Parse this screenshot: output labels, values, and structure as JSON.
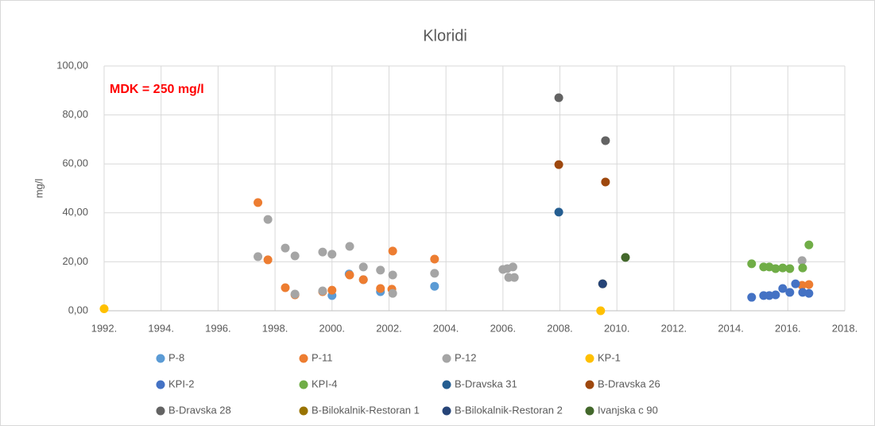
{
  "chart_data": {
    "type": "scatter",
    "title": "Kloridi",
    "y_label": "mg/l",
    "annotation": "MDK = 250 mg/l",
    "xlim": [
      1992,
      2018
    ],
    "xticks": [
      {
        "value": 1992,
        "label": "1992."
      },
      {
        "value": 1994,
        "label": "1994."
      },
      {
        "value": 1996,
        "label": "1996."
      },
      {
        "value": 1998,
        "label": "1998."
      },
      {
        "value": 2000,
        "label": "2000."
      },
      {
        "value": 2002,
        "label": "2002."
      },
      {
        "value": 2004,
        "label": "2004."
      },
      {
        "value": 2006,
        "label": "2006."
      },
      {
        "value": 2008,
        "label": "2008."
      },
      {
        "value": 2010,
        "label": "2010."
      },
      {
        "value": 2012,
        "label": "2012."
      },
      {
        "value": 2014,
        "label": "2014."
      },
      {
        "value": 2016,
        "label": "2016."
      },
      {
        "value": 2018,
        "label": "2018."
      }
    ],
    "ylim": [
      0,
      100
    ],
    "yticks": [
      {
        "value": 0,
        "label": "0,00"
      },
      {
        "value": 20,
        "label": "20,00"
      },
      {
        "value": 40,
        "label": "40,00"
      },
      {
        "value": 60,
        "label": "60,00"
      },
      {
        "value": 80,
        "label": "80,00"
      },
      {
        "value": 100,
        "label": "100,00"
      }
    ],
    "grid": true,
    "series": [
      {
        "name": "P-8",
        "color": "#5b9bd5",
        "x": [
          2000.0,
          2000.6,
          2001.1,
          2001.7,
          2003.6
        ],
        "values": [
          6.2,
          15,
          12.7,
          7.8,
          10
        ]
      },
      {
        "name": "P-11",
        "color": "#ed7d31",
        "x": [
          1997.4,
          1997.75,
          1998.36,
          1998.7,
          1999.67,
          2000.0,
          2000.62,
          2001.1,
          2001.7,
          2002.1,
          2002.13,
          2003.6,
          2016.5,
          2016.74
        ],
        "values": [
          44.2,
          20.8,
          9.4,
          6.5,
          7.8,
          8.4,
          14.6,
          12.7,
          9.1,
          8.8,
          24.4,
          21.1,
          10.4,
          10.7
        ]
      },
      {
        "name": "P-12",
        "color": "#a5a5a5",
        "x": [
          1997.4,
          1997.75,
          1998.36,
          1998.7,
          1999.67,
          2000.0,
          2000.62,
          2001.1,
          2001.7,
          2002.13,
          2002.13,
          2003.6,
          1998.7,
          1999.67,
          2006.0,
          2006.15,
          2006.35,
          2006.2,
          2006.4,
          2016.5
        ],
        "values": [
          22.1,
          37.3,
          25.6,
          22.4,
          24.0,
          23.1,
          26.3,
          17.9,
          16.6,
          14.6,
          7.1,
          15.3,
          6.8,
          8.1,
          16.9,
          17.2,
          17.9,
          13.6,
          13.6,
          20.5
        ]
      },
      {
        "name": "KP-1",
        "color": "#ffc000",
        "x": [
          1992.0,
          2009.43
        ],
        "values": [
          0.8,
          0
        ]
      },
      {
        "name": "KPI-2",
        "color": "#4472c4",
        "x": [
          2014.73,
          2015.15,
          2015.35,
          2015.57,
          2015.82,
          2016.07,
          2016.27,
          2016.52,
          2016.74
        ],
        "values": [
          5.5,
          6.2,
          6.2,
          6.5,
          9.1,
          7.5,
          11,
          7.5,
          7.1
        ]
      },
      {
        "name": "KPI-4",
        "color": "#70ad47",
        "x": [
          2014.73,
          2015.15,
          2015.35,
          2015.57,
          2015.82,
          2016.07,
          2016.52,
          2016.74
        ],
        "values": [
          19.2,
          17.9,
          17.9,
          17.2,
          17.5,
          17.2,
          17.5,
          26.9
        ]
      },
      {
        "name": "B-Dravska 31",
        "color": "#255e91",
        "x": [
          2007.96
        ],
        "values": [
          40.3
        ]
      },
      {
        "name": "B-Dravska 26",
        "color": "#9e480e",
        "x": [
          2007.96,
          2009.6
        ],
        "values": [
          59.7,
          52.6
        ]
      },
      {
        "name": "B-Dravska 28",
        "color": "#636363",
        "x": [
          2007.96,
          2009.6
        ],
        "values": [
          87,
          69.5
        ]
      },
      {
        "name": "B-Bilokalnik-Restoran 1",
        "color": "#997300",
        "x": [
          2009.5
        ],
        "values": [
          11
        ]
      },
      {
        "name": "B-Bilokalnik-Restoran 2",
        "color": "#264478",
        "x": [
          2009.5
        ],
        "values": [
          11
        ]
      },
      {
        "name": "Ivanjska c 90",
        "color": "#43682b",
        "x": [
          2010.3
        ],
        "values": [
          21.8
        ]
      }
    ]
  }
}
